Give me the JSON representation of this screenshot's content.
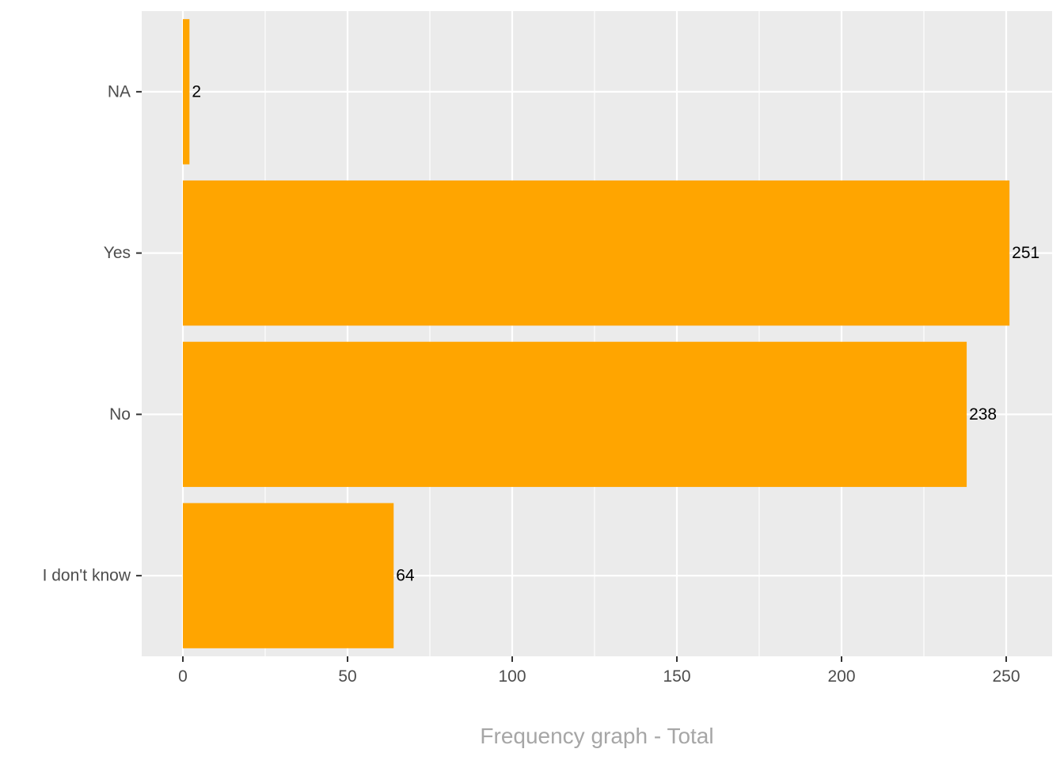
{
  "chart_data": {
    "type": "bar",
    "orientation": "horizontal",
    "categories": [
      "I don't know",
      "No",
      "Yes",
      "NA"
    ],
    "values": [
      64,
      238,
      251,
      2
    ],
    "data_labels": [
      "64",
      "238",
      "251",
      "2"
    ],
    "xlabel": "Frequency graph - Total",
    "ylabel": "",
    "xlim": [
      0,
      252
    ],
    "x_ticks": [
      0,
      50,
      100,
      150,
      200,
      250
    ],
    "x_tick_labels": [
      "0",
      "50",
      "100",
      "150",
      "200",
      "250"
    ],
    "grid": true,
    "legend": "none"
  },
  "colors": {
    "bar": "#FFA500",
    "panel_background": "#EBEBEB",
    "grid": "#FFFFFF",
    "axis_text": "#4D4D4D",
    "axis_title": "#A6A6A6",
    "data_label": "#000000"
  }
}
